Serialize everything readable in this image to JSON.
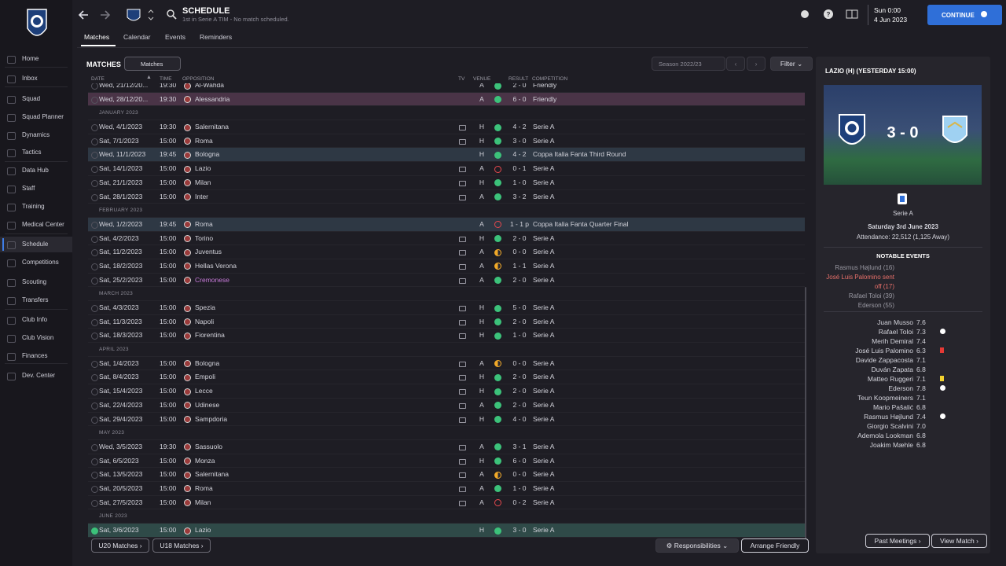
{
  "header": {
    "title": "SCHEDULE",
    "subtitle": "1st in Serie A TIM - No match scheduled.",
    "tabs": [
      "Matches",
      "Calendar",
      "Events",
      "Reminders"
    ],
    "time": "Sun 0:00",
    "date": "4 Jun 2023",
    "continue": "CONTINUE"
  },
  "sidebar": {
    "items": [
      "Home",
      "Inbox",
      "Squad",
      "Squad Planner",
      "Dynamics",
      "Tactics",
      "Data Hub",
      "Staff",
      "Training",
      "Medical Center",
      "Schedule",
      "Competitions",
      "Scouting",
      "Transfers",
      "Club Info",
      "Club Vision",
      "Finances",
      "Dev. Center"
    ],
    "active": 10
  },
  "toolbar": {
    "label": "MATCHES",
    "view": "Matches",
    "season": "Season 2022/23",
    "filter": "Filter"
  },
  "table": {
    "columns": [
      "DATE",
      "TIME",
      "OPPOSITION",
      "TV",
      "VENUE",
      "RESULT",
      "COMPETITION"
    ],
    "rows": [
      {
        "date": "Wed, 21/12/20...",
        "time": "19:30",
        "opposition": "Al-Wahda",
        "venue": "A",
        "result": "2 - 0",
        "competition": "Friendly",
        "outcome": "win"
      },
      {
        "date": "Wed, 28/12/20...",
        "time": "19:30",
        "opposition": "Alessandria",
        "venue": "A",
        "result": "6 - 0",
        "competition": "Friendly",
        "outcome": "win",
        "highlight": "friendly"
      },
      {
        "month": "JANUARY 2023"
      },
      {
        "date": "Wed, 4/1/2023",
        "time": "19:30",
        "opposition": "Salernitana",
        "tv": true,
        "venue": "H",
        "result": "4 - 2",
        "competition": "Serie A",
        "outcome": "win"
      },
      {
        "date": "Sat, 7/1/2023",
        "time": "15:00",
        "opposition": "Roma",
        "tv": true,
        "venue": "H",
        "result": "3 - 0",
        "competition": "Serie A",
        "outcome": "win"
      },
      {
        "date": "Wed, 11/1/2023",
        "time": "19:45",
        "opposition": "Bologna",
        "venue": "H",
        "result": "4 - 2",
        "competition": "Coppa Italia Fanta Third Round",
        "outcome": "win",
        "highlight": "cup"
      },
      {
        "date": "Sat, 14/1/2023",
        "time": "15:00",
        "opposition": "Lazio",
        "tv": true,
        "venue": "A",
        "result": "0 - 1",
        "competition": "Serie A",
        "outcome": "loss"
      },
      {
        "date": "Sat, 21/1/2023",
        "time": "15:00",
        "opposition": "Milan",
        "tv": true,
        "venue": "H",
        "result": "1 - 0",
        "competition": "Serie A",
        "outcome": "win"
      },
      {
        "date": "Sat, 28/1/2023",
        "time": "15:00",
        "opposition": "Inter",
        "tv": true,
        "venue": "A",
        "result": "3 - 2",
        "competition": "Serie A",
        "outcome": "win"
      },
      {
        "month": "FEBRUARY 2023"
      },
      {
        "date": "Wed, 1/2/2023",
        "time": "19:45",
        "opposition": "Roma",
        "venue": "A",
        "result": "1 - 1 p",
        "competition": "Coppa Italia Fanta Quarter Final",
        "outcome": "loss",
        "highlight": "cup"
      },
      {
        "date": "Sat, 4/2/2023",
        "time": "15:00",
        "opposition": "Torino",
        "tv": true,
        "venue": "H",
        "result": "2 - 0",
        "competition": "Serie A",
        "outcome": "win"
      },
      {
        "date": "Sat, 11/2/2023",
        "time": "15:00",
        "opposition": "Juventus",
        "tv": true,
        "venue": "A",
        "result": "0 - 0",
        "competition": "Serie A",
        "outcome": "draw"
      },
      {
        "date": "Sat, 18/2/2023",
        "time": "15:00",
        "opposition": "Hellas Verona",
        "tv": true,
        "venue": "A",
        "result": "1 - 1",
        "competition": "Serie A",
        "outcome": "draw"
      },
      {
        "date": "Sat, 25/2/2023",
        "time": "15:00",
        "opposition": "Cremonese",
        "tv": true,
        "venue": "A",
        "result": "2 - 0",
        "competition": "Serie A",
        "outcome": "win",
        "name_color": "#c77ad8"
      },
      {
        "month": "MARCH 2023"
      },
      {
        "date": "Sat, 4/3/2023",
        "time": "15:00",
        "opposition": "Spezia",
        "tv": true,
        "venue": "H",
        "result": "5 - 0",
        "competition": "Serie A",
        "outcome": "win"
      },
      {
        "date": "Sat, 11/3/2023",
        "time": "15:00",
        "opposition": "Napoli",
        "tv": true,
        "venue": "H",
        "result": "2 - 0",
        "competition": "Serie A",
        "outcome": "win"
      },
      {
        "date": "Sat, 18/3/2023",
        "time": "15:00",
        "opposition": "Fiorentina",
        "tv": true,
        "venue": "H",
        "result": "1 - 0",
        "competition": "Serie A",
        "outcome": "win"
      },
      {
        "month": "APRIL 2023"
      },
      {
        "date": "Sat, 1/4/2023",
        "time": "15:00",
        "opposition": "Bologna",
        "tv": true,
        "venue": "A",
        "result": "0 - 0",
        "competition": "Serie A",
        "outcome": "draw"
      },
      {
        "date": "Sat, 8/4/2023",
        "time": "15:00",
        "opposition": "Empoli",
        "tv": true,
        "venue": "H",
        "result": "2 - 0",
        "competition": "Serie A",
        "outcome": "win"
      },
      {
        "date": "Sat, 15/4/2023",
        "time": "15:00",
        "opposition": "Lecce",
        "tv": true,
        "venue": "H",
        "result": "2 - 0",
        "competition": "Serie A",
        "outcome": "win"
      },
      {
        "date": "Sat, 22/4/2023",
        "time": "15:00",
        "opposition": "Udinese",
        "tv": true,
        "venue": "A",
        "result": "2 - 0",
        "competition": "Serie A",
        "outcome": "win"
      },
      {
        "date": "Sat, 29/4/2023",
        "time": "15:00",
        "opposition": "Sampdoria",
        "tv": true,
        "venue": "H",
        "result": "4 - 0",
        "competition": "Serie A",
        "outcome": "win"
      },
      {
        "month": "MAY 2023"
      },
      {
        "date": "Wed, 3/5/2023",
        "time": "19:30",
        "opposition": "Sassuolo",
        "tv": true,
        "venue": "A",
        "result": "3 - 1",
        "competition": "Serie A",
        "outcome": "win"
      },
      {
        "date": "Sat, 6/5/2023",
        "time": "15:00",
        "opposition": "Monza",
        "tv": true,
        "venue": "H",
        "result": "6 - 0",
        "competition": "Serie A",
        "outcome": "win"
      },
      {
        "date": "Sat, 13/5/2023",
        "time": "15:00",
        "opposition": "Salernitana",
        "tv": true,
        "venue": "A",
        "result": "0 - 0",
        "competition": "Serie A",
        "outcome": "draw"
      },
      {
        "date": "Sat, 20/5/2023",
        "time": "15:00",
        "opposition": "Roma",
        "tv": true,
        "venue": "A",
        "result": "1 - 0",
        "competition": "Serie A",
        "outcome": "win"
      },
      {
        "date": "Sat, 27/5/2023",
        "time": "15:00",
        "opposition": "Milan",
        "tv": true,
        "venue": "A",
        "result": "0 - 2",
        "competition": "Serie A",
        "outcome": "loss"
      },
      {
        "month": "JUNE 2023"
      },
      {
        "date": "Sat, 3/6/2023",
        "time": "15:00",
        "opposition": "Lazio",
        "venue": "H",
        "result": "3 - 0",
        "competition": "Serie A",
        "outcome": "win",
        "highlight": "selected"
      }
    ]
  },
  "footer": {
    "left": [
      "U20 Matches",
      "U18 Matches"
    ],
    "responsibilities": "Responsibilities",
    "arrange": "Arrange Friendly"
  },
  "panel": {
    "title": "LAZIO (H) (YESTERDAY 15:00)",
    "score": "3 - 0",
    "competition": "Serie A",
    "date": "Saturday 3rd June 2023",
    "attendance": "Attendance: 22,512 (1,125 Away)",
    "events_title": "NOTABLE EVENTS",
    "events": [
      {
        "text": "Rasmus Højlund (16)"
      },
      {
        "text": "José Luis Palomino sent off (17)",
        "color": "#e8706a"
      },
      {
        "text": "Rafael Toloi (39)"
      },
      {
        "text": "Ederson (55)"
      }
    ],
    "ratings": [
      {
        "name": "Juan Musso",
        "rating": "7.6"
      },
      {
        "name": "Rafael Toloi",
        "rating": "7.3",
        "icon": "goal"
      },
      {
        "name": "Merih Demiral",
        "rating": "7.4"
      },
      {
        "name": "José Luis Palomino",
        "rating": "6.3",
        "icon": "red"
      },
      {
        "name": "Davide Zappacosta",
        "rating": "7.1"
      },
      {
        "name": "Duván Zapata",
        "rating": "6.8"
      },
      {
        "name": "Matteo Ruggeri",
        "rating": "7.1",
        "icon": "yellow"
      },
      {
        "name": "Ederson",
        "rating": "7.8",
        "icon": "goal"
      },
      {
        "name": "Teun Koopmeiners",
        "rating": "7.1"
      },
      {
        "name": "Mario Pašalić",
        "rating": "6.8"
      },
      {
        "name": "Rasmus Højlund",
        "rating": "7.4",
        "icon": "goal"
      },
      {
        "name": "Giorgio Scalvini",
        "rating": "7.0"
      },
      {
        "name": "Ademola Lookman",
        "rating": "6.8"
      },
      {
        "name": "Joakim Mæhle",
        "rating": "6.8"
      }
    ],
    "buttons": [
      "Past Meetings",
      "View Match"
    ]
  }
}
